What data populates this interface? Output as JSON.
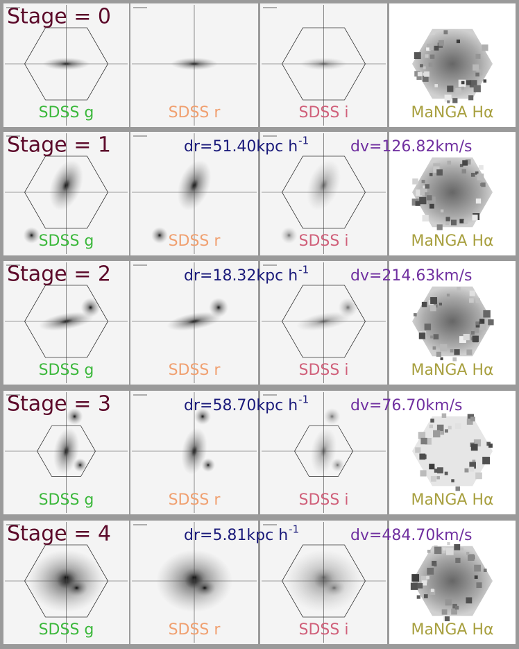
{
  "rows": [
    {
      "stage": "Stage = 0",
      "panels": [
        "SDSS g",
        "SDSS r",
        "SDSS i",
        "MaNGA Hα"
      ]
    },
    {
      "stage": "Stage = 1",
      "dr": {
        "text": "dr=51.40kpc h",
        "sup": "-1"
      },
      "dv": "dv=126.82km/s",
      "panels": [
        "SDSS g",
        "SDSS r",
        "SDSS i",
        "MaNGA Hα"
      ]
    },
    {
      "stage": "Stage = 2",
      "dr": {
        "text": "dr=18.32kpc h",
        "sup": "-1"
      },
      "dv": "dv=214.63km/s",
      "panels": [
        "SDSS g",
        "SDSS r",
        "SDSS i",
        "MaNGA Hα"
      ]
    },
    {
      "stage": "Stage = 3",
      "dr": {
        "text": "dr=58.70kpc h",
        "sup": "-1"
      },
      "dv": "dv=76.70km/s",
      "panels": [
        "SDSS g",
        "SDSS r",
        "SDSS i",
        "MaNGA Hα"
      ]
    },
    {
      "stage": "Stage = 4",
      "dr": {
        "text": "dr=5.81kpc h",
        "sup": "-1"
      },
      "dv": "dv=484.70km/s",
      "panels": [
        "SDSS g",
        "SDSS r",
        "SDSS i",
        "MaNGA Hα"
      ]
    }
  ]
}
